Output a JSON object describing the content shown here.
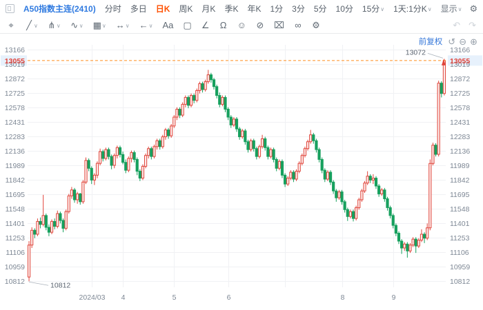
{
  "toolbar_top": {
    "symbol": "A50指数主连(2410)",
    "periods": [
      {
        "label": "分时"
      },
      {
        "label": "多日"
      },
      {
        "label": "日K",
        "active": true
      },
      {
        "label": "周K"
      },
      {
        "label": "月K"
      },
      {
        "label": "季K"
      },
      {
        "label": "年K"
      },
      {
        "label": "1分"
      },
      {
        "label": "3分"
      },
      {
        "label": "5分"
      },
      {
        "label": "10分"
      },
      {
        "label": "15分",
        "chevron": true
      },
      {
        "label": "1天:1分K",
        "chevron": true
      }
    ],
    "display_menu": {
      "label": "显示",
      "chevron": true
    },
    "icon_buttons": [
      {
        "name": "settings-gear-icon",
        "glyph": "⚙"
      },
      {
        "name": "indicator-box-icon",
        "glyph": "▢",
        "chevron": true
      },
      {
        "name": "camera-icon",
        "glyph": "◉"
      },
      {
        "name": "screenshot-edit-icon",
        "glyph": "⧉"
      },
      {
        "name": "pencil-icon",
        "glyph": "✎"
      },
      {
        "name": "fullscreen-icon",
        "glyph": "⤢"
      },
      {
        "name": "right-panel-icon",
        "glyph": "▥"
      }
    ]
  },
  "toolbar_draw": {
    "tools": [
      {
        "name": "cursor-move-tool",
        "glyph": "⌖"
      },
      {
        "name": "trend-line-tool",
        "glyph": "╱",
        "chevron": true
      },
      {
        "name": "pitchfork-tool",
        "glyph": "⋔",
        "chevron": true
      },
      {
        "name": "wave-tool",
        "glyph": "∿",
        "chevron": true
      },
      {
        "name": "gann-box-tool",
        "glyph": "▦",
        "chevron": true
      },
      {
        "name": "measure-tool",
        "glyph": "↔",
        "chevron": true
      },
      {
        "name": "arrow-tool",
        "glyph": "←",
        "chevron": true
      },
      {
        "name": "text-tool",
        "glyph": "Aa"
      },
      {
        "name": "comment-tool",
        "glyph": "▢"
      },
      {
        "name": "angle-tool",
        "glyph": "∠"
      },
      {
        "name": "magnet-tool",
        "glyph": "Ω"
      },
      {
        "name": "emoji-tool",
        "glyph": "☺"
      },
      {
        "name": "ban-tool",
        "glyph": "⊘"
      },
      {
        "name": "trash-tool",
        "glyph": "⌧"
      },
      {
        "name": "link-rings-tool",
        "glyph": "∞"
      },
      {
        "name": "settings-tool",
        "glyph": "⚙"
      }
    ],
    "undo_glyph": "↶",
    "redo_glyph": "↷"
  },
  "chart_header": {
    "adjust_label": "前复权",
    "controls": [
      {
        "name": "reset-zoom-icon",
        "glyph": "↺"
      },
      {
        "name": "zoom-out-icon",
        "glyph": "⊖"
      },
      {
        "name": "zoom-in-icon",
        "glyph": "⊕"
      }
    ]
  },
  "chart_data": {
    "type": "candlestick",
    "title": "A50指数主连(2410) 日K 前复权",
    "y_ticks": [
      13166,
      13019,
      12872,
      12725,
      12578,
      12431,
      12283,
      12136,
      11989,
      11842,
      11695,
      11548,
      11401,
      11253,
      11106,
      10959,
      10812
    ],
    "ylim": [
      10730,
      13200
    ],
    "x_labels": [
      {
        "label": "2024/03",
        "index": 22
      },
      {
        "label": "4",
        "index": 33
      },
      {
        "label": "5",
        "index": 51
      },
      {
        "label": "6",
        "index": 70
      },
      {
        "label": "",
        "index": 90
      },
      {
        "label": "8",
        "index": 110
      },
      {
        "label": "9",
        "index": 128
      }
    ],
    "current_price": 13055,
    "current_price_label": "13055",
    "annotations": {
      "high_label": {
        "text": "13072",
        "candle_index": 146
      },
      "low_label": {
        "text": "10812",
        "candle_index": 0
      }
    },
    "colors": {
      "up_stroke": "#e0443a",
      "up_fill": "#fdeceb",
      "down": "#17a05e",
      "price_line": "#ff8d1e",
      "badge_bg": "#e7f1fc",
      "badge_text": "#e0443a",
      "grid": "#f0f1f4",
      "axis_text": "#7d8794",
      "annotation_text": "#5b6470"
    },
    "legend_position": "none",
    "grid": true,
    "candles_ohlc": [
      [
        10855,
        11220,
        10812,
        11180
      ],
      [
        11180,
        11360,
        11150,
        11330
      ],
      [
        11330,
        11350,
        11250,
        11290
      ],
      [
        11290,
        11450,
        11270,
        11420
      ],
      [
        11420,
        11460,
        11350,
        11390
      ],
      [
        11390,
        11690,
        11370,
        11480
      ],
      [
        11480,
        11500,
        11330,
        11360
      ],
      [
        11360,
        11390,
        11270,
        11310
      ],
      [
        11310,
        11440,
        11290,
        11420
      ],
      [
        11420,
        11450,
        11340,
        11370
      ],
      [
        11370,
        11530,
        11350,
        11500
      ],
      [
        11500,
        11520,
        11400,
        11430
      ],
      [
        11430,
        11450,
        11310,
        11350
      ],
      [
        11350,
        11540,
        11330,
        11520
      ],
      [
        11520,
        11700,
        11500,
        11680
      ],
      [
        11680,
        11770,
        11650,
        11740
      ],
      [
        11740,
        11760,
        11610,
        11640
      ],
      [
        11640,
        11720,
        11600,
        11700
      ],
      [
        11700,
        11710,
        11590,
        11620
      ],
      [
        11620,
        11840,
        11600,
        11820
      ],
      [
        11820,
        12070,
        11800,
        12040
      ],
      [
        12040,
        12060,
        11930,
        11960
      ],
      [
        11960,
        11980,
        11800,
        11840
      ],
      [
        11840,
        11910,
        11790,
        11890
      ],
      [
        11890,
        12030,
        11860,
        12010
      ],
      [
        12010,
        12160,
        11990,
        12130
      ],
      [
        12130,
        12150,
        12030,
        12060
      ],
      [
        12060,
        12170,
        12040,
        12150
      ],
      [
        12150,
        12170,
        12050,
        12080
      ],
      [
        12080,
        12100,
        11950,
        11990
      ],
      [
        11990,
        12110,
        11960,
        12090
      ],
      [
        12090,
        12190,
        12060,
        12170
      ],
      [
        12170,
        12190,
        12070,
        12100
      ],
      [
        12100,
        12130,
        12000,
        12020
      ],
      [
        12020,
        12050,
        11910,
        11940
      ],
      [
        11940,
        12080,
        11920,
        12060
      ],
      [
        12060,
        12140,
        12020,
        12120
      ],
      [
        12120,
        12140,
        12020,
        12050
      ],
      [
        12050,
        12070,
        11890,
        11930
      ],
      [
        11930,
        11950,
        11830,
        11860
      ],
      [
        11860,
        12000,
        11840,
        11980
      ],
      [
        11980,
        12110,
        11960,
        12090
      ],
      [
        12090,
        12180,
        12060,
        12160
      ],
      [
        12160,
        12180,
        12050,
        12080
      ],
      [
        12080,
        12200,
        12060,
        12180
      ],
      [
        12180,
        12260,
        12150,
        12240
      ],
      [
        12240,
        12260,
        12150,
        12180
      ],
      [
        12180,
        12300,
        12160,
        12280
      ],
      [
        12280,
        12370,
        12250,
        12350
      ],
      [
        12350,
        12370,
        12260,
        12290
      ],
      [
        12290,
        12410,
        12270,
        12390
      ],
      [
        12390,
        12500,
        12370,
        12480
      ],
      [
        12480,
        12580,
        12450,
        12560
      ],
      [
        12560,
        12580,
        12470,
        12500
      ],
      [
        12500,
        12630,
        12480,
        12610
      ],
      [
        12610,
        12700,
        12580,
        12680
      ],
      [
        12680,
        12700,
        12570,
        12600
      ],
      [
        12600,
        12720,
        12580,
        12700
      ],
      [
        12700,
        12720,
        12620,
        12650
      ],
      [
        12650,
        12770,
        12630,
        12750
      ],
      [
        12750,
        12840,
        12720,
        12820
      ],
      [
        12820,
        12840,
        12730,
        12760
      ],
      [
        12760,
        12860,
        12740,
        12840
      ],
      [
        12840,
        12960,
        12820,
        12910
      ],
      [
        12910,
        12930,
        12830,
        12860
      ],
      [
        12860,
        12880,
        12760,
        12790
      ],
      [
        12790,
        12810,
        12670,
        12700
      ],
      [
        12700,
        12730,
        12580,
        12610
      ],
      [
        12610,
        12700,
        12590,
        12680
      ],
      [
        12680,
        12700,
        12530,
        12560
      ],
      [
        12560,
        12580,
        12450,
        12480
      ],
      [
        12480,
        12500,
        12370,
        12400
      ],
      [
        12400,
        12480,
        12380,
        12460
      ],
      [
        12460,
        12480,
        12330,
        12360
      ],
      [
        12360,
        12380,
        12250,
        12280
      ],
      [
        12280,
        12360,
        12260,
        12340
      ],
      [
        12340,
        12360,
        12200,
        12230
      ],
      [
        12230,
        12250,
        12120,
        12150
      ],
      [
        12150,
        12260,
        12130,
        12240
      ],
      [
        12240,
        12260,
        12130,
        12160
      ],
      [
        12160,
        12180,
        12050,
        12080
      ],
      [
        12080,
        12200,
        12060,
        12180
      ],
      [
        12180,
        12300,
        12160,
        12260
      ],
      [
        12260,
        12280,
        12140,
        12170
      ],
      [
        12170,
        12190,
        12050,
        12080
      ],
      [
        12080,
        12170,
        12060,
        12150
      ],
      [
        12150,
        12170,
        12020,
        12050
      ],
      [
        12050,
        12070,
        11930,
        11960
      ],
      [
        11960,
        12050,
        11940,
        12030
      ],
      [
        12030,
        12050,
        11860,
        11890
      ],
      [
        11890,
        11910,
        11770,
        11800
      ],
      [
        11800,
        11880,
        11780,
        11860
      ],
      [
        11860,
        11940,
        11840,
        11920
      ],
      [
        11920,
        11940,
        11820,
        11850
      ],
      [
        11850,
        11950,
        11830,
        11930
      ],
      [
        11930,
        12030,
        11910,
        12010
      ],
      [
        12010,
        12110,
        11990,
        12090
      ],
      [
        12090,
        12180,
        12070,
        12160
      ],
      [
        12160,
        12250,
        12140,
        12230
      ],
      [
        12230,
        12350,
        12210,
        12300
      ],
      [
        12300,
        12320,
        12210,
        12240
      ],
      [
        12240,
        12260,
        12120,
        12150
      ],
      [
        12150,
        12170,
        12020,
        12050
      ],
      [
        12050,
        12070,
        11910,
        11940
      ],
      [
        11940,
        11960,
        11820,
        11850
      ],
      [
        11850,
        11940,
        11830,
        11920
      ],
      [
        11920,
        11940,
        11790,
        11820
      ],
      [
        11820,
        11840,
        11700,
        11730
      ],
      [
        11730,
        11750,
        11620,
        11660
      ],
      [
        11660,
        11740,
        11640,
        11720
      ],
      [
        11720,
        11740,
        11590,
        11620
      ],
      [
        11620,
        11640,
        11510,
        11540
      ],
      [
        11540,
        11560,
        11425,
        11470
      ],
      [
        11470,
        11540,
        11450,
        11520
      ],
      [
        11520,
        11540,
        11420,
        11450
      ],
      [
        11450,
        11580,
        11430,
        11560
      ],
      [
        11560,
        11660,
        11540,
        11640
      ],
      [
        11640,
        11750,
        11620,
        11730
      ],
      [
        11730,
        11830,
        11710,
        11810
      ],
      [
        11810,
        11930,
        11790,
        11880
      ],
      [
        11880,
        11900,
        11810,
        11840
      ],
      [
        11840,
        11900,
        11800,
        11860
      ],
      [
        11860,
        11880,
        11750,
        11780
      ],
      [
        11780,
        11800,
        11670,
        11700
      ],
      [
        11700,
        11760,
        11680,
        11740
      ],
      [
        11740,
        11760,
        11620,
        11650
      ],
      [
        11650,
        11670,
        11530,
        11560
      ],
      [
        11560,
        11580,
        11450,
        11480
      ],
      [
        11480,
        11500,
        11350,
        11380
      ],
      [
        11380,
        11400,
        11270,
        11300
      ],
      [
        11300,
        11320,
        11190,
        11220
      ],
      [
        11220,
        11240,
        11090,
        11150
      ],
      [
        11150,
        11210,
        11120,
        11190
      ],
      [
        11190,
        11210,
        11052,
        11120
      ],
      [
        11120,
        11200,
        11100,
        11180
      ],
      [
        11180,
        11260,
        11160,
        11240
      ],
      [
        11240,
        11260,
        11100,
        11170
      ],
      [
        11170,
        11250,
        11150,
        11230
      ],
      [
        11230,
        11340,
        11210,
        11290
      ],
      [
        11290,
        11310,
        11200,
        11250
      ],
      [
        11250,
        11400,
        11230,
        11355
      ],
      [
        11355,
        12050,
        11330,
        12009
      ],
      [
        12009,
        12220,
        11990,
        12195
      ],
      [
        12195,
        12215,
        12080,
        12102
      ],
      [
        12102,
        12850,
        12080,
        12825
      ],
      [
        12825,
        12845,
        12680,
        12720
      ],
      [
        12720,
        13072,
        12700,
        13055
      ]
    ]
  }
}
